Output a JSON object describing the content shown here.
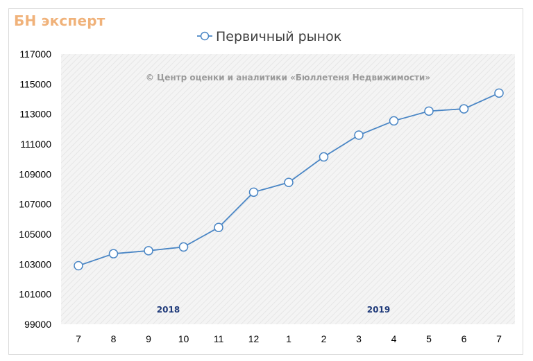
{
  "logo": "БН эксперт",
  "copyright": "© Центр оценки и аналитики «Бюллетеня Недвижимости»",
  "colors": {
    "line": "#4a86c5",
    "logo": "#f0b27a",
    "year": "#1f3a7a",
    "plot_bg": "#f2f2f2"
  },
  "chart_data": {
    "type": "line",
    "title": "",
    "categories": [
      "7",
      "8",
      "9",
      "10",
      "11",
      "12",
      "1",
      "2",
      "3",
      "4",
      "5",
      "6",
      "7"
    ],
    "series": [
      {
        "name": "Первичный рынок",
        "values": [
          102900,
          103700,
          103900,
          104150,
          105450,
          107800,
          108450,
          110150,
          111600,
          112550,
          113200,
          113350,
          114400
        ]
      }
    ],
    "year_labels": [
      {
        "text": "2018",
        "category_index": 3
      },
      {
        "text": "2019",
        "category_index": 9
      }
    ],
    "yticks": [
      99000,
      101000,
      103000,
      105000,
      107000,
      109000,
      111000,
      113000,
      115000,
      117000
    ],
    "ylim": [
      99000,
      117000
    ],
    "legend_position": "top",
    "grid": false
  }
}
